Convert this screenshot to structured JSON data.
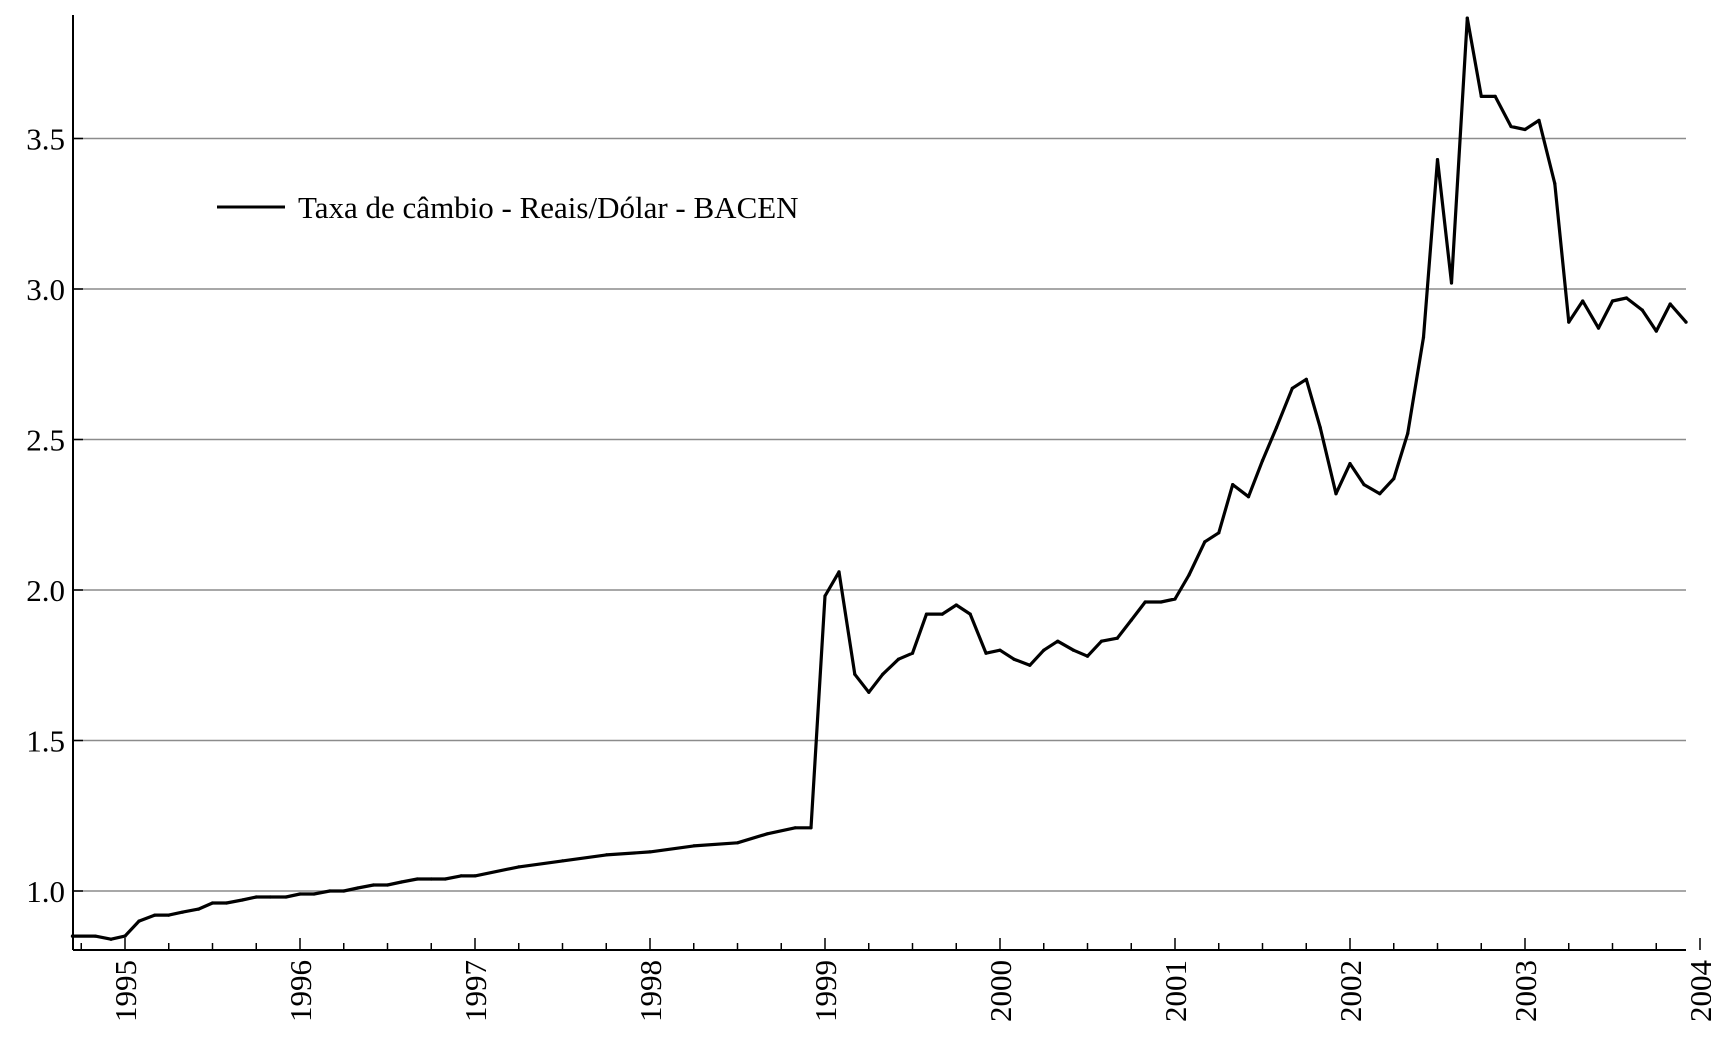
{
  "chart_data": {
    "type": "line",
    "title": "",
    "xlabel": "",
    "ylabel": "",
    "legend": {
      "placement": "top-left",
      "label": "Taxa de câmbio - Reais/Dólar - BACEN"
    },
    "grid": {
      "horizontal": true,
      "vertical": false
    },
    "xlim": [
      1994.7,
      2004.0
    ],
    "ylim": [
      0.8,
      3.9
    ],
    "x_ticks": [
      "1995",
      "1996",
      "1997",
      "1998",
      "1999",
      "2000",
      "2001",
      "2002",
      "2003",
      "2004"
    ],
    "y_ticks": [
      "1.0",
      "1.5",
      "2.0",
      "2.5",
      "3.0",
      "3.5"
    ],
    "series": [
      {
        "name": "Taxa de câmbio - Reais/Dólar - BACEN",
        "color": "#000000",
        "x": [
          1994.7,
          1994.83,
          1994.92,
          1995.0,
          1995.08,
          1995.17,
          1995.25,
          1995.33,
          1995.42,
          1995.5,
          1995.58,
          1995.67,
          1995.75,
          1995.83,
          1995.92,
          1996.0,
          1996.08,
          1996.17,
          1996.25,
          1996.33,
          1996.42,
          1996.5,
          1996.58,
          1996.67,
          1996.75,
          1996.83,
          1996.92,
          1997.0,
          1997.25,
          1997.5,
          1997.75,
          1998.0,
          1998.25,
          1998.5,
          1998.67,
          1998.83,
          1998.92,
          1999.0,
          1999.08,
          1999.17,
          1999.25,
          1999.33,
          1999.42,
          1999.5,
          1999.58,
          1999.67,
          1999.75,
          1999.83,
          1999.92,
          2000.0,
          2000.08,
          2000.17,
          2000.25,
          2000.33,
          2000.42,
          2000.5,
          2000.58,
          2000.67,
          2000.75,
          2000.83,
          2000.92,
          2001.0,
          2001.08,
          2001.17,
          2001.25,
          2001.33,
          2001.42,
          2001.5,
          2001.58,
          2001.67,
          2001.75,
          2001.83,
          2001.92,
          2002.0,
          2002.08,
          2002.17,
          2002.25,
          2002.33,
          2002.42,
          2002.5,
          2002.58,
          2002.67,
          2002.75,
          2002.83,
          2002.92,
          2003.0,
          2003.08,
          2003.17,
          2003.25,
          2003.33,
          2003.42,
          2003.5,
          2003.58,
          2003.67,
          2003.75,
          2003.83,
          2003.92
        ],
        "y": [
          0.85,
          0.85,
          0.84,
          0.85,
          0.9,
          0.92,
          0.92,
          0.93,
          0.94,
          0.96,
          0.96,
          0.97,
          0.98,
          0.98,
          0.98,
          0.99,
          0.99,
          1.0,
          1.0,
          1.01,
          1.02,
          1.02,
          1.03,
          1.04,
          1.04,
          1.04,
          1.05,
          1.05,
          1.08,
          1.1,
          1.12,
          1.13,
          1.15,
          1.16,
          1.19,
          1.21,
          1.21,
          1.98,
          2.06,
          1.72,
          1.66,
          1.72,
          1.77,
          1.79,
          1.92,
          1.92,
          1.95,
          1.92,
          1.79,
          1.8,
          1.77,
          1.75,
          1.8,
          1.83,
          1.8,
          1.78,
          1.83,
          1.84,
          1.9,
          1.96,
          1.96,
          1.97,
          2.05,
          2.16,
          2.19,
          2.35,
          2.31,
          2.43,
          2.54,
          2.67,
          2.7,
          2.54,
          2.32,
          2.42,
          2.35,
          2.32,
          2.37,
          2.52,
          2.84,
          3.43,
          3.02,
          3.9,
          3.64,
          3.64,
          3.54,
          3.53,
          3.56,
          3.35,
          2.89,
          2.96,
          2.87,
          2.96,
          2.97,
          2.93,
          2.86,
          2.95,
          2.89
        ]
      }
    ]
  }
}
